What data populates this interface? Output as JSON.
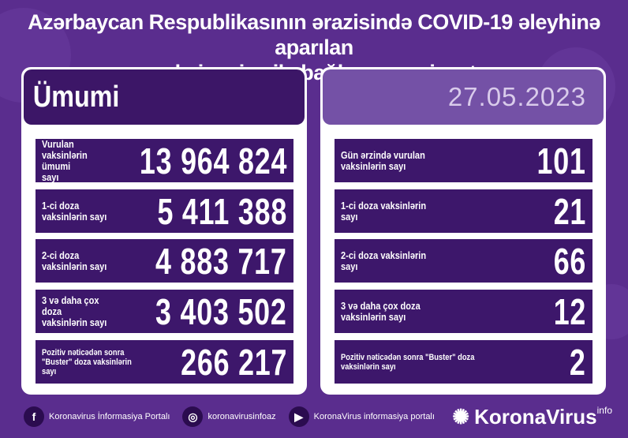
{
  "title": {
    "line1": "Azərbaycan Respublikasının ərazisində COVID-19 əleyhinə aparılan",
    "line2": "vaksinasiya ilə bağlı son vəziyyət"
  },
  "left": {
    "header": "Ümumi",
    "rows": [
      {
        "label": "Vurulan vaksinlərin ümumi sayı",
        "value": "13 964 824"
      },
      {
        "label": "1-ci doza vaksinlərin sayı",
        "value": "5 411 388"
      },
      {
        "label": "2-ci doza vaksinlərin sayı",
        "value": "4 883 717"
      },
      {
        "label": "3 və daha çox doza vaksinlərin sayı",
        "value": "3 403 502"
      },
      {
        "label": "Pozitiv nəticədən sonra \"Buster\" doza vaksinlərin sayı",
        "value": "266 217"
      }
    ]
  },
  "right": {
    "date": "27.05.2023",
    "rows": [
      {
        "label": "Gün ərzində vurulan vaksinlərin sayı",
        "value": "101"
      },
      {
        "label": "1-ci doza vaksinlərin sayı",
        "value": "21"
      },
      {
        "label": "2-ci doza vaksinlərin sayı",
        "value": "66"
      },
      {
        "label": "3 və daha çox doza vaksinlərin sayı",
        "value": "12"
      },
      {
        "label": "Pozitiv nəticədən sonra \"Buster\" doza vaksinlərin sayı",
        "value": "2"
      }
    ]
  },
  "footer": {
    "facebook": "Koronavirus İnformasiya Portalı",
    "instagram": "koronavirusinfoaz",
    "youtube": "KoronaVirus informasiya portalı",
    "brand": "KoronaVirus",
    "brand_sup": "info"
  }
}
